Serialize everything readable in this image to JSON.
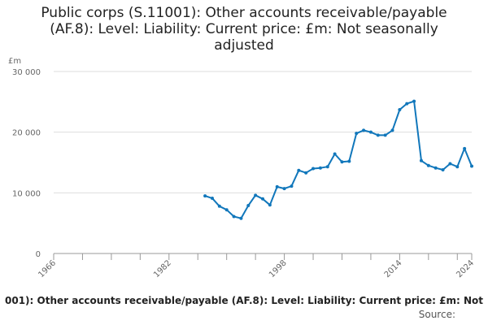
{
  "title_lines": [
    "Public corps (S.11001): Other accounts receivable/payable",
    "(AF.8): Level: Liability: Current price: £m: Not seasonally",
    "adjusted"
  ],
  "legend_text": "001): Other accounts receivable/payable (AF.8): Level: Liability: Current price: £m: Not",
  "source_label": "Source:",
  "colors": {
    "line": "#1177bb",
    "grid": "#dddddd",
    "axis": "#999999"
  },
  "chart_data": {
    "type": "line",
    "ylabel": "£m",
    "ylim": [
      0,
      30000
    ],
    "xlim": [
      1966,
      2024
    ],
    "y_ticks": [
      {
        "value": 0,
        "label": "0"
      },
      {
        "value": 10000,
        "label": "10 000"
      },
      {
        "value": 20000,
        "label": "20 000"
      },
      {
        "value": 30000,
        "label": "30 000"
      }
    ],
    "x_ticks_labeled": [
      {
        "value": 1966,
        "label": "1966"
      },
      {
        "value": 1982,
        "label": "1982"
      },
      {
        "value": 1998,
        "label": "1998"
      },
      {
        "value": 2014,
        "label": "2014"
      },
      {
        "value": 2024,
        "label": "2024"
      }
    ],
    "x_ticks_minor": [
      1970,
      1974,
      1978,
      1986,
      1990,
      1994,
      2002,
      2006,
      2010,
      2018,
      2022
    ],
    "series": [
      {
        "x": [
          1987,
          1988,
          1989,
          1990,
          1991,
          1992,
          1993,
          1994,
          1995,
          1996,
          1997,
          1998,
          1999,
          2000,
          2001,
          2002,
          2003,
          2004,
          2005,
          2006,
          2007,
          2008,
          2009,
          2010,
          2011,
          2012,
          2013,
          2014,
          2015,
          2016,
          2017,
          2018,
          2019,
          2020,
          2021,
          2022,
          2023,
          2024
        ],
        "values": [
          9500,
          9100,
          7800,
          7200,
          6100,
          5800,
          7900,
          9600,
          9000,
          8000,
          11000,
          10700,
          11100,
          13700,
          13300,
          14000,
          14100,
          14300,
          16400,
          15100,
          15200,
          19800,
          20300,
          20000,
          19500,
          19500,
          20300,
          23700,
          24700,
          25100,
          15300,
          14500,
          14100,
          13800,
          14800,
          14300,
          17300,
          14400
        ]
      }
    ]
  }
}
